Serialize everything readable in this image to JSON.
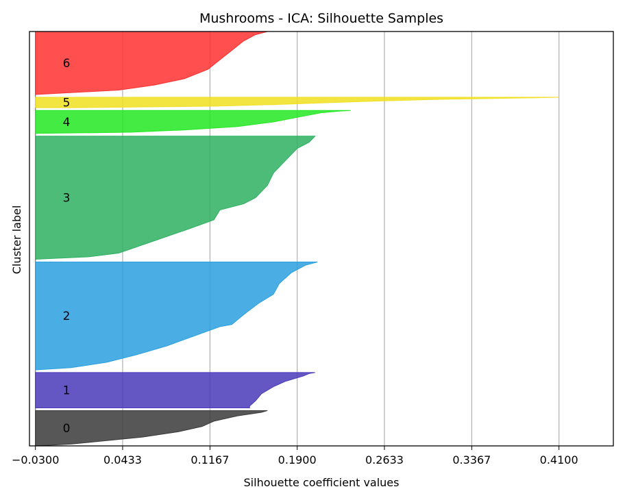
{
  "chart_data": {
    "type": "area",
    "title": "Mushrooms - ICA: Silhouette Samples",
    "xlabel": "Silhouette coefficient values",
    "ylabel": "Cluster label",
    "xlim": [
      -0.035,
      0.4557
    ],
    "grid": "x",
    "x_ticks": [
      "−0.0300",
      "0.0433",
      "0.1167",
      "0.1900",
      "0.2633",
      "0.3367",
      "0.4100"
    ],
    "x_tick_values": [
      -0.03,
      0.0433,
      0.1167,
      0.19,
      0.2633,
      0.3367,
      0.41
    ],
    "clusters": [
      {
        "label": "0",
        "color": "#3a3a3a",
        "samples": 370,
        "profile": [
          [
            0,
            0.165
          ],
          [
            0.05,
            0.16
          ],
          [
            0.15,
            0.14
          ],
          [
            0.3,
            0.12
          ],
          [
            0.45,
            0.11
          ],
          [
            0.6,
            0.09
          ],
          [
            0.75,
            0.06
          ],
          [
            0.85,
            0.03
          ],
          [
            0.95,
            0.0
          ],
          [
            1.0,
            -0.03
          ]
        ]
      },
      {
        "label": "1",
        "color": "#4a3ab8",
        "samples": 370,
        "profile": [
          [
            0,
            0.205
          ],
          [
            0.03,
            0.2
          ],
          [
            0.1,
            0.195
          ],
          [
            0.25,
            0.18
          ],
          [
            0.4,
            0.17
          ],
          [
            0.6,
            0.16
          ],
          [
            0.8,
            0.155
          ],
          [
            0.95,
            0.15
          ],
          [
            1.0,
            0.15
          ]
        ]
      },
      {
        "label": "2",
        "color": "#2aa0e0",
        "samples": 1130,
        "profile": [
          [
            0,
            0.207
          ],
          [
            0.03,
            0.197
          ],
          [
            0.1,
            0.185
          ],
          [
            0.2,
            0.175
          ],
          [
            0.3,
            0.17
          ],
          [
            0.38,
            0.158
          ],
          [
            0.48,
            0.146
          ],
          [
            0.58,
            0.135
          ],
          [
            0.6,
            0.125
          ],
          [
            0.7,
            0.1
          ],
          [
            0.78,
            0.08
          ],
          [
            0.86,
            0.055
          ],
          [
            0.93,
            0.03
          ],
          [
            0.98,
            0.0
          ],
          [
            1.0,
            -0.028
          ]
        ]
      },
      {
        "label": "3",
        "color": "#2db060",
        "samples": 1290,
        "profile": [
          [
            0,
            0.205
          ],
          [
            0.05,
            0.2
          ],
          [
            0.1,
            0.19
          ],
          [
            0.2,
            0.18
          ],
          [
            0.3,
            0.17
          ],
          [
            0.4,
            0.165
          ],
          [
            0.5,
            0.155
          ],
          [
            0.55,
            0.145
          ],
          [
            0.6,
            0.125
          ],
          [
            0.68,
            0.12
          ],
          [
            0.75,
            0.1
          ],
          [
            0.85,
            0.07
          ],
          [
            0.95,
            0.04
          ],
          [
            0.98,
            0.015
          ],
          [
            1.0,
            -0.03
          ]
        ]
      },
      {
        "label": "4",
        "color": "#22e822",
        "samples": 240,
        "profile": [
          [
            0,
            0.235
          ],
          [
            0.03,
            0.225
          ],
          [
            0.1,
            0.21
          ],
          [
            0.3,
            0.19
          ],
          [
            0.5,
            0.17
          ],
          [
            0.7,
            0.14
          ],
          [
            0.85,
            0.095
          ],
          [
            0.95,
            0.05
          ],
          [
            1.0,
            -0.03
          ]
        ]
      },
      {
        "label": "5",
        "color": "#f0e020",
        "samples": 110,
        "profile": [
          [
            0,
            0.41
          ],
          [
            0.05,
            0.39
          ],
          [
            0.2,
            0.31
          ],
          [
            0.35,
            0.26
          ],
          [
            0.5,
            0.22
          ],
          [
            0.7,
            0.17
          ],
          [
            0.85,
            0.12
          ],
          [
            1.0,
            0.0
          ]
        ]
      },
      {
        "label": "6",
        "color": "#ff3030",
        "samples": 660,
        "profile": [
          [
            0,
            0.165
          ],
          [
            0.05,
            0.155
          ],
          [
            0.15,
            0.145
          ],
          [
            0.3,
            0.135
          ],
          [
            0.45,
            0.125
          ],
          [
            0.6,
            0.115
          ],
          [
            0.75,
            0.095
          ],
          [
            0.85,
            0.07
          ],
          [
            0.93,
            0.04
          ],
          [
            1.0,
            -0.03
          ]
        ]
      }
    ]
  }
}
